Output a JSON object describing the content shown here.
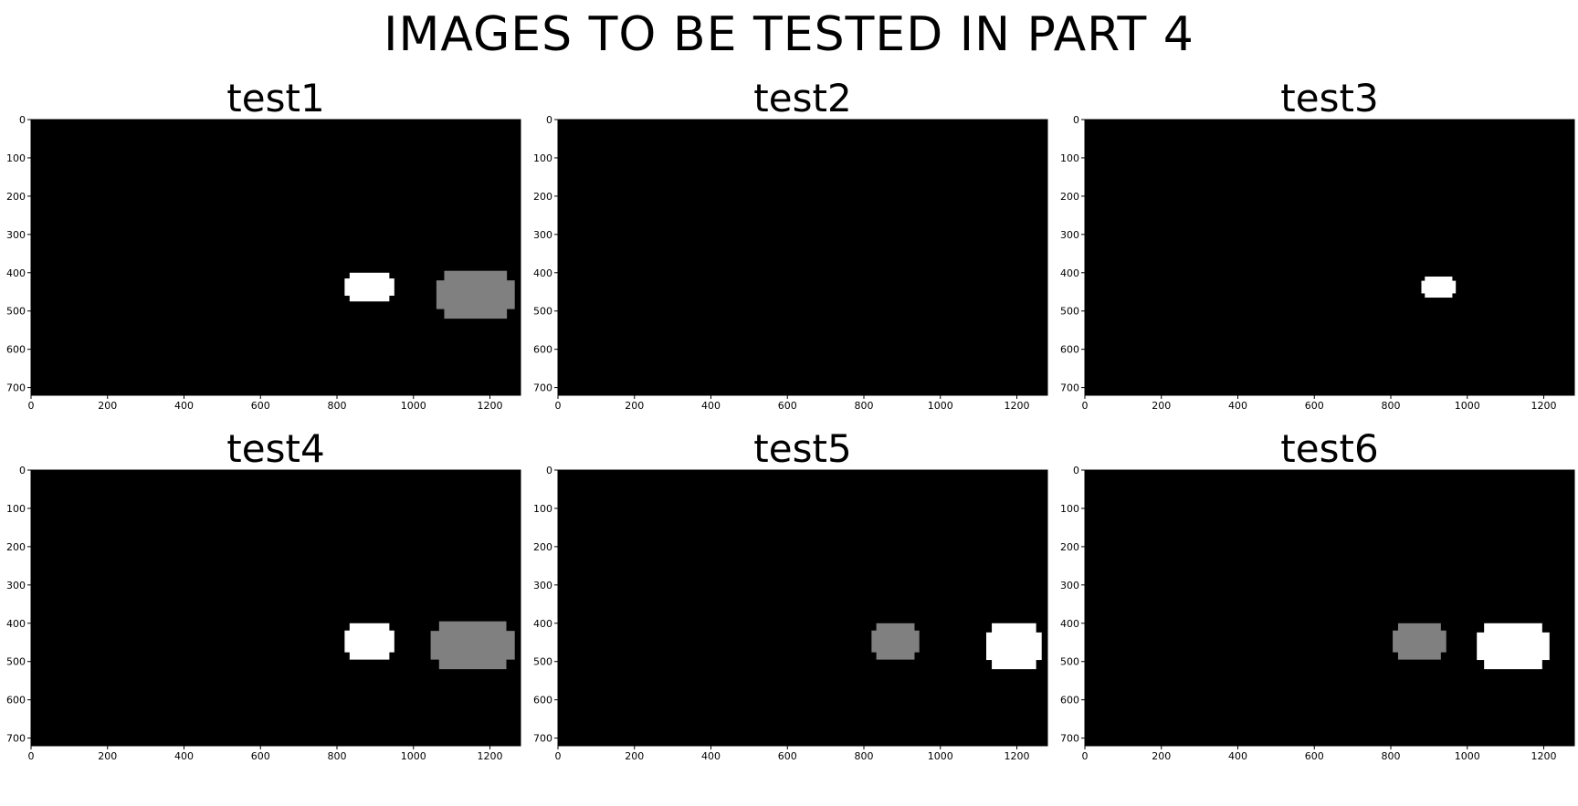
{
  "figure": {
    "title": "IMAGES TO BE TESTED IN PART 4"
  },
  "axis": {
    "xlim": [
      0,
      1280
    ],
    "ylim": [
      720,
      0
    ],
    "x_ticks": [
      0,
      200,
      400,
      600,
      800,
      1000,
      1200
    ],
    "y_ticks": [
      0,
      100,
      200,
      300,
      400,
      500,
      600,
      700
    ],
    "background_color": "#000000"
  },
  "colors": {
    "white": "#ffffff",
    "gray": "#808080"
  },
  "chart_data": [
    {
      "type": "heatmap",
      "title": "test1",
      "blobs": [
        {
          "color": "white",
          "x_range": [
            820,
            950
          ],
          "y_range": [
            400,
            475
          ]
        },
        {
          "color": "gray",
          "x_range": [
            1060,
            1265
          ],
          "y_range": [
            395,
            520
          ]
        }
      ]
    },
    {
      "type": "heatmap",
      "title": "test2",
      "blobs": []
    },
    {
      "type": "heatmap",
      "title": "test3",
      "blobs": [
        {
          "color": "white",
          "x_range": [
            880,
            970
          ],
          "y_range": [
            410,
            465
          ]
        }
      ]
    },
    {
      "type": "heatmap",
      "title": "test4",
      "blobs": [
        {
          "color": "white",
          "x_range": [
            820,
            950
          ],
          "y_range": [
            400,
            495
          ]
        },
        {
          "color": "gray",
          "x_range": [
            1045,
            1265
          ],
          "y_range": [
            395,
            520
          ]
        }
      ]
    },
    {
      "type": "heatmap",
      "title": "test5",
      "blobs": [
        {
          "color": "gray",
          "x_range": [
            820,
            945
          ],
          "y_range": [
            400,
            495
          ]
        },
        {
          "color": "white",
          "x_range": [
            1120,
            1265
          ],
          "y_range": [
            400,
            520
          ]
        }
      ]
    },
    {
      "type": "heatmap",
      "title": "test6",
      "blobs": [
        {
          "color": "gray",
          "x_range": [
            805,
            945
          ],
          "y_range": [
            400,
            495
          ]
        },
        {
          "color": "white",
          "x_range": [
            1025,
            1215
          ],
          "y_range": [
            400,
            520
          ]
        }
      ]
    }
  ]
}
